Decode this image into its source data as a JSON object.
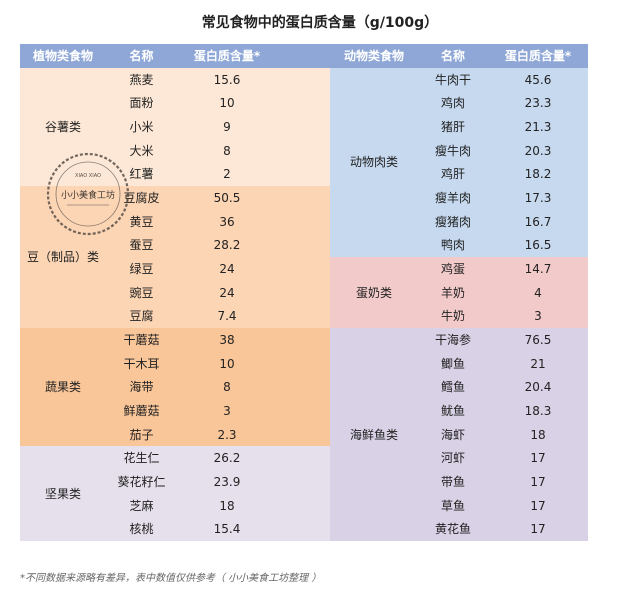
{
  "title": "常见食物中的蛋白质含量（g/100g）",
  "headers": {
    "plant_category": "植物类食物",
    "plant_name": "名称",
    "plant_protein": "蛋白质含量*",
    "animal_category": "动物类食物",
    "animal_name": "名称",
    "animal_protein": "蛋白质含量*"
  },
  "plant_groups": [
    {
      "category": "谷薯类",
      "items": [
        {
          "name": "燕麦",
          "value": "15.6"
        },
        {
          "name": "面粉",
          "value": "10"
        },
        {
          "name": "小米",
          "value": "9"
        },
        {
          "name": "大米",
          "value": "8"
        },
        {
          "name": "红薯",
          "value": "2"
        }
      ]
    },
    {
      "category": "豆（制品）类",
      "items": [
        {
          "name": "豆腐皮",
          "value": "50.5"
        },
        {
          "name": "黄豆",
          "value": "36"
        },
        {
          "name": "蚕豆",
          "value": "28.2"
        },
        {
          "name": "绿豆",
          "value": "24"
        },
        {
          "name": "豌豆",
          "value": "24"
        },
        {
          "name": "豆腐",
          "value": "7.4"
        }
      ]
    },
    {
      "category": "蔬果类",
      "items": [
        {
          "name": "干蘑菇",
          "value": "38"
        },
        {
          "name": "干木耳",
          "value": "10"
        },
        {
          "name": "海带",
          "value": "8"
        },
        {
          "name": "鲜蘑菇",
          "value": "3"
        },
        {
          "name": "茄子",
          "value": "2.3"
        }
      ]
    },
    {
      "category": "坚果类",
      "items": [
        {
          "name": "花生仁",
          "value": "26.2"
        },
        {
          "name": "葵花籽仁",
          "value": "23.9"
        },
        {
          "name": "芝麻",
          "value": "18"
        },
        {
          "name": "核桃",
          "value": "15.4"
        }
      ]
    }
  ],
  "animal_groups": [
    {
      "category": "动物肉类",
      "items": [
        {
          "name": "牛肉干",
          "value": "45.6"
        },
        {
          "name": "鸡肉",
          "value": "23.3"
        },
        {
          "name": "猪肝",
          "value": "21.3"
        },
        {
          "name": "瘦牛肉",
          "value": "20.3"
        },
        {
          "name": "鸡肝",
          "value": "18.2"
        },
        {
          "name": "瘦羊肉",
          "value": "17.3"
        },
        {
          "name": "瘦猪肉",
          "value": "16.7"
        },
        {
          "name": "鸭肉",
          "value": "16.5"
        }
      ]
    },
    {
      "category": "蛋奶类",
      "items": [
        {
          "name": "鸡蛋",
          "value": "14.7"
        },
        {
          "name": "羊奶",
          "value": "4"
        },
        {
          "name": "牛奶",
          "value": "3"
        }
      ]
    },
    {
      "category": "海鲜鱼类",
      "items": [
        {
          "name": "干海参",
          "value": "76.5"
        },
        {
          "name": "鲫鱼",
          "value": "21"
        },
        {
          "name": "鳕鱼",
          "value": "20.4"
        },
        {
          "name": "鱿鱼",
          "value": "18.3"
        },
        {
          "name": "海虾",
          "value": "18"
        },
        {
          "name": "河虾",
          "value": "17"
        },
        {
          "name": "带鱼",
          "value": "17"
        },
        {
          "name": "草鱼",
          "value": "17"
        },
        {
          "name": "黄花鱼",
          "value": "17"
        }
      ]
    }
  ],
  "stamp": {
    "top_text": "XIAO XIAO",
    "main_text": "小小美食工坊"
  },
  "footnote": "*不同数据来源略有差异，表中数值仅供参考（ 小小美食工坊整理 ）"
}
